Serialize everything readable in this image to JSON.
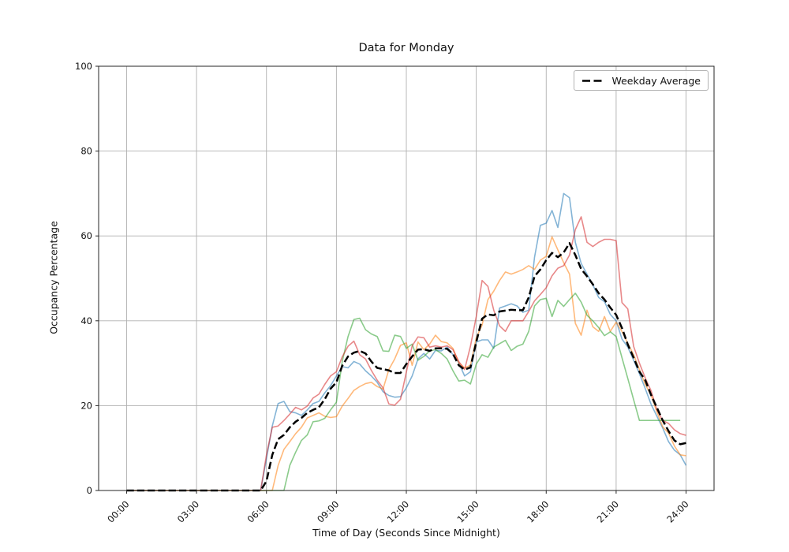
{
  "figure": {
    "title": "Data for Monday",
    "xlabel": "Time of Day (Seconds Since Midnight)",
    "ylabel": "Occupancy Percentage",
    "legend_label": "Weekday Average"
  },
  "chart_data": {
    "type": "line",
    "title": "Data for Monday",
    "xlabel": "Time of Day (Seconds Since Midnight)",
    "ylabel": "Occupancy Percentage",
    "grid": true,
    "legend_position": "upper right",
    "legend_entries": [
      "Weekday Average"
    ],
    "xlim_hours": [
      -1.2,
      25.2
    ],
    "ylim": [
      0,
      100
    ],
    "x_ticks_hours": [
      0,
      3,
      6,
      9,
      12,
      15,
      18,
      21,
      24
    ],
    "x_tick_labels": [
      "00:00",
      "03:00",
      "06:00",
      "09:00",
      "12:00",
      "15:00",
      "18:00",
      "21:00",
      "24:00"
    ],
    "y_ticks": [
      0,
      20,
      40,
      60,
      80,
      100
    ],
    "x_start_hours": 0,
    "x_step_minutes": 15,
    "colors": {
      "grid": "#b0b0b0",
      "spine": "#262626",
      "blue": "#1f77b4",
      "orange": "#ff7f0e",
      "green": "#2ca02c",
      "red": "#d62728",
      "average": "#000000"
    },
    "series": [
      {
        "id": "occupancy-blue",
        "color": "#1f77b4",
        "opacity": 0.55,
        "width": 1.6,
        "dash": null,
        "values": [
          0,
          0,
          0,
          0,
          0,
          0,
          0,
          0,
          0,
          0,
          0,
          0,
          0,
          0,
          0,
          0,
          0,
          0,
          0,
          0,
          0,
          0,
          0,
          0,
          7.5,
          15.2,
          20.5,
          21,
          18.6,
          18.3,
          17.7,
          19,
          20.5,
          21,
          23,
          24.7,
          27,
          29.2,
          28.9,
          30.4,
          29.8,
          28.2,
          27,
          25.5,
          23.3,
          22.4,
          22,
          22.1,
          24.2,
          27,
          31,
          32.3,
          31,
          33,
          32.9,
          33.8,
          32,
          30.1,
          27,
          28,
          35,
          35.5,
          35.5,
          33.5,
          43,
          43.5,
          44,
          43.5,
          42,
          42.5,
          55,
          62.5,
          63,
          66,
          62,
          70,
          69,
          58.5,
          53.5,
          51,
          48.5,
          45.5,
          44.5,
          41.5,
          40,
          35.7,
          33.8,
          30.7,
          27.5,
          24,
          20.3,
          17.5,
          14.7,
          11.5,
          9.5,
          8.4,
          5.9
        ]
      },
      {
        "id": "occupancy-orange",
        "color": "#ff7f0e",
        "opacity": 0.55,
        "width": 1.6,
        "dash": null,
        "values": [
          0,
          0,
          0,
          0,
          0,
          0,
          0,
          0,
          0,
          0,
          0,
          0,
          0,
          0,
          0,
          0,
          0,
          0,
          0,
          0,
          0,
          0,
          0,
          0,
          0,
          0,
          5.9,
          9.7,
          11.5,
          13.4,
          14.9,
          17.1,
          17.7,
          18.3,
          17.5,
          17.2,
          17.4,
          19.9,
          21.7,
          23.6,
          24.5,
          25.2,
          25.5,
          24.5,
          23.9,
          28.5,
          31,
          34.2,
          34.8,
          29.5,
          35,
          33.2,
          34.5,
          36.6,
          35.1,
          34.8,
          33.5,
          30.1,
          28.9,
          29.5,
          36,
          39,
          45,
          47,
          49.5,
          51.5,
          51,
          51.5,
          52.1,
          53,
          52.1,
          54.3,
          55.2,
          59.8,
          56.7,
          53.7,
          51,
          39.4,
          36.6,
          42.5,
          38.6,
          37.5,
          41,
          37.5,
          39.7,
          37.5,
          34.7,
          32,
          28.5,
          25,
          22.5,
          18.5,
          15,
          13.5,
          10.5,
          8.4,
          8.2
        ]
      },
      {
        "id": "occupancy-green",
        "color": "#2ca02c",
        "opacity": 0.55,
        "width": 1.6,
        "dash": null,
        "values": [
          0,
          0,
          0,
          0,
          0,
          0,
          0,
          0,
          0,
          0,
          0,
          0,
          0,
          0,
          0,
          0,
          0,
          0,
          0,
          0,
          0,
          0,
          0,
          0,
          0,
          0,
          0,
          0,
          5.9,
          9,
          11.8,
          13.1,
          16.2,
          16.4,
          17,
          19,
          20.8,
          30.4,
          36.3,
          40.3,
          40.6,
          37.9,
          36.9,
          36.3,
          32.9,
          32.8,
          36.6,
          36.3,
          33.5,
          34.5,
          30.7,
          31.6,
          32.9,
          33.2,
          32.3,
          31,
          28.2,
          25.8,
          26,
          25.1,
          29.8,
          32,
          31.4,
          33.8,
          34.6,
          35.4,
          33,
          34,
          34.5,
          37.5,
          43.5,
          45,
          45.3,
          41,
          44.8,
          43.4,
          45,
          46.5,
          44.4,
          41.3,
          40,
          38.4,
          36.5,
          37.4,
          36.3,
          31.3,
          26.4,
          21.4,
          16.5,
          16.5,
          16.5,
          16.5,
          16.5,
          16.5,
          16.5,
          16.5,
          null
        ]
      },
      {
        "id": "occupancy-red",
        "color": "#d62728",
        "opacity": 0.55,
        "width": 1.6,
        "dash": null,
        "values": [
          0,
          0,
          0,
          0,
          0,
          0,
          0,
          0,
          0,
          0,
          0,
          0,
          0,
          0,
          0,
          0,
          0,
          0,
          0,
          0,
          0,
          0,
          0,
          0,
          8.4,
          14.9,
          15.2,
          16.5,
          18,
          19.6,
          19,
          19.9,
          21.8,
          22.7,
          25,
          27,
          28,
          31.5,
          34,
          35.2,
          32,
          31,
          28.3,
          26,
          24.2,
          20.4,
          20.1,
          21.5,
          27.9,
          34.1,
          36.2,
          36,
          33.8,
          34.1,
          33.8,
          34.1,
          33.2,
          30.4,
          28.5,
          34,
          41,
          49.5,
          48.1,
          42.5,
          38.8,
          37.5,
          40,
          40,
          40,
          42.2,
          44.7,
          46.2,
          47.8,
          50.6,
          52.4,
          53,
          55.5,
          61.5,
          64.5,
          58.5,
          57.5,
          58.5,
          59.2,
          59.2,
          58.9,
          44.3,
          42.8,
          34,
          30,
          26.5,
          23.5,
          19,
          16.5,
          15.8,
          14.3,
          13.4,
          13
        ]
      },
      {
        "id": "weekday-average",
        "label": "Weekday Average",
        "color": "#000000",
        "opacity": 1,
        "width": 2.5,
        "dash": "9.3 4",
        "values": [
          0,
          0,
          0,
          0,
          0,
          0,
          0,
          0,
          0,
          0,
          0,
          0,
          0,
          0,
          0,
          0,
          0,
          0,
          0,
          0,
          0,
          0,
          0,
          0,
          2.2,
          8.4,
          12.1,
          13.1,
          14.9,
          16.2,
          17.1,
          18.3,
          19,
          19.6,
          21.5,
          24,
          25.5,
          29.4,
          31.6,
          32.5,
          32.9,
          32.3,
          30.4,
          28.9,
          28.6,
          28.3,
          27.7,
          27.7,
          29.8,
          31.6,
          33.2,
          33.3,
          32.9,
          33.5,
          33.5,
          33.4,
          32.2,
          29.5,
          28.5,
          29,
          35,
          40.5,
          41.5,
          41.3,
          42.2,
          42.4,
          42.6,
          42.5,
          42.5,
          45.5,
          50.5,
          52.1,
          54.3,
          56,
          55,
          56.1,
          58.3,
          55.5,
          52.2,
          50.5,
          48.6,
          46.5,
          45,
          43.1,
          41.4,
          38.3,
          34.4,
          31.3,
          28,
          26,
          22.5,
          19.5,
          16.5,
          14,
          11.8,
          10.9,
          11.2
        ]
      }
    ]
  },
  "layout_note": "matplotlib-style line chart, grid on, all four spines visible"
}
